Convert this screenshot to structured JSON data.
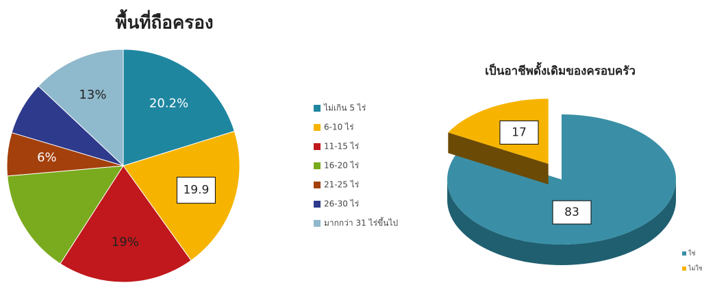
{
  "chart_data": [
    {
      "type": "pie",
      "title": "พื้นที่ถือครอง",
      "categories": [
        "ไม่เกิน 5 ไร่",
        "6-10 ไร่",
        "11-15 ไร่",
        "16-20 ไร่",
        "21-25 ไร่",
        "26-30 ไร่",
        "มากกว่า 31 ไร่ขึ้นไป"
      ],
      "values": [
        20.2,
        19.9,
        19,
        14.5,
        6,
        7.4,
        13
      ],
      "value_labels": [
        "20.2%",
        "19.9",
        "19%",
        null,
        "6%",
        null,
        "13%"
      ],
      "colors": [
        "#1f86a0",
        "#f6b400",
        "#c0181c",
        "#7aab1e",
        "#a3400c",
        "#2e3a8c",
        "#8fb9cc"
      ],
      "legend": "right"
    },
    {
      "type": "pie3d",
      "title": "เป็นอาชีพดั้งเดิมของครอบครัว",
      "categories": [
        "ใช่",
        "ไม่ใช่"
      ],
      "values": [
        83,
        17
      ],
      "colors": [
        "#3a8fa6",
        "#f6b400"
      ],
      "legend": "bottom-right"
    }
  ]
}
